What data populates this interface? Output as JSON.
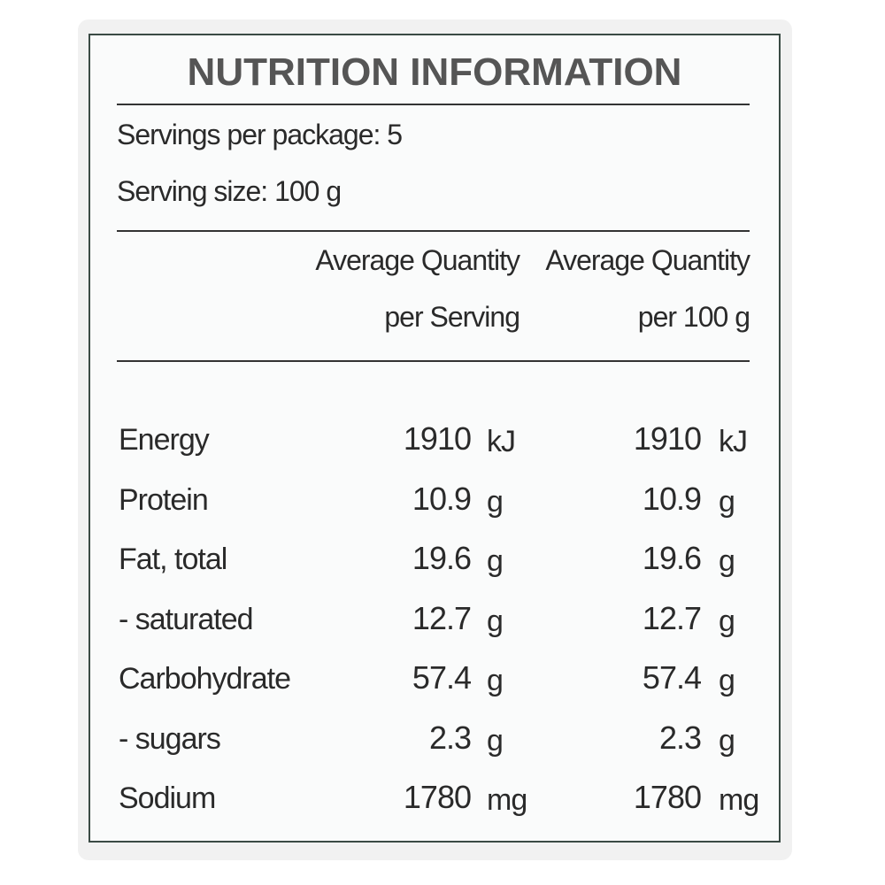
{
  "title": "NUTRITION INFORMATION",
  "servings_per_package": "Servings per package: 5",
  "serving_size": "Serving size: 100 g",
  "columns": [
    {
      "line1": "Average Quantity",
      "line2": "per Serving"
    },
    {
      "line1": "Average Quantity",
      "line2": "per 100 g"
    }
  ],
  "rows": [
    {
      "name": "Energy",
      "serving": "1910",
      "serving_unit": "kJ",
      "per100": "1910",
      "per100_unit": "kJ"
    },
    {
      "name": "Protein",
      "serving": "10.9",
      "serving_unit": "g",
      "per100": "10.9",
      "per100_unit": "g"
    },
    {
      "name": "Fat, total",
      "serving": "19.6",
      "serving_unit": "g",
      "per100": "19.6",
      "per100_unit": "g"
    },
    {
      "name": "- saturated",
      "serving": "12.7",
      "serving_unit": "g",
      "per100": "12.7",
      "per100_unit": "g"
    },
    {
      "name": "Carbohydrate",
      "serving": "57.4",
      "serving_unit": "g",
      "per100": "57.4",
      "per100_unit": "g"
    },
    {
      "name": "- sugars",
      "serving": "2.3",
      "serving_unit": "g",
      "per100": "2.3",
      "per100_unit": "g"
    },
    {
      "name": "Sodium",
      "serving": "1780",
      "serving_unit": "mg",
      "per100": "1780",
      "per100_unit": "mg"
    }
  ]
}
